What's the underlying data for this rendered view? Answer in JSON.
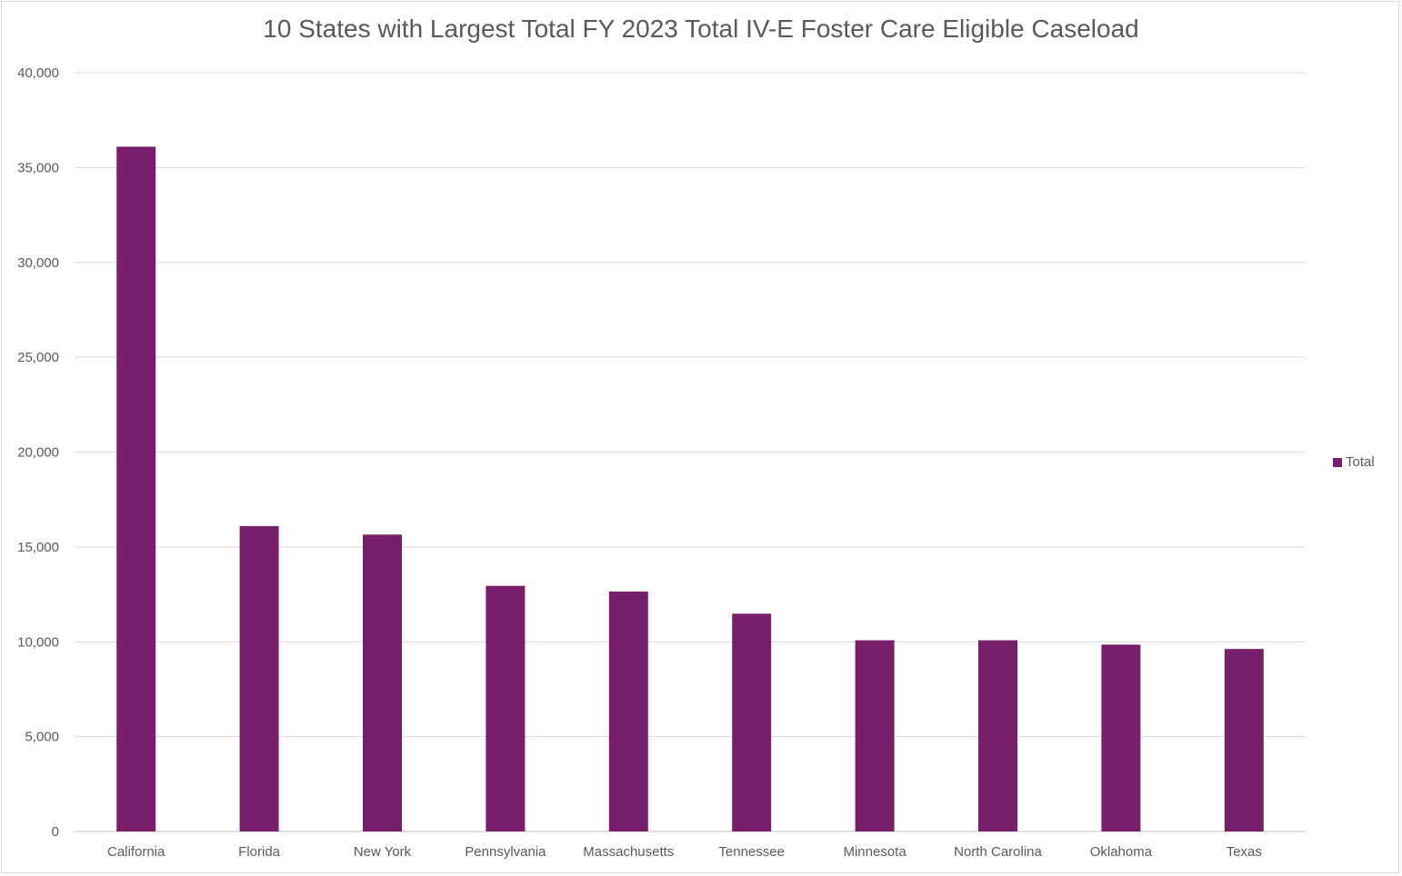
{
  "chart_data": {
    "type": "bar",
    "title": "10 States with Largest Total FY 2023 Total IV-E Foster Care Eligible Caseload",
    "xlabel": "",
    "ylabel": "",
    "categories": [
      "California",
      "Florida",
      "New York",
      "Pennsylvania",
      "Massachusetts",
      "Tennessee",
      "Minnesota",
      "North Carolina",
      "Oklahoma",
      "Texas"
    ],
    "series": [
      {
        "name": "Total",
        "color": "#771f6b",
        "values": [
          36100,
          16100,
          15650,
          12950,
          12650,
          11480,
          10080,
          10080,
          9850,
          9620
        ]
      }
    ],
    "ylim": [
      0,
      40000
    ],
    "yticks": [
      0,
      5000,
      10000,
      15000,
      20000,
      25000,
      30000,
      35000,
      40000
    ],
    "ytick_labels": [
      "0",
      "5,000",
      "10,000",
      "15,000",
      "20,000",
      "25,000",
      "30,000",
      "35,000",
      "40,000"
    ],
    "grid": true,
    "legend_position": "right"
  }
}
